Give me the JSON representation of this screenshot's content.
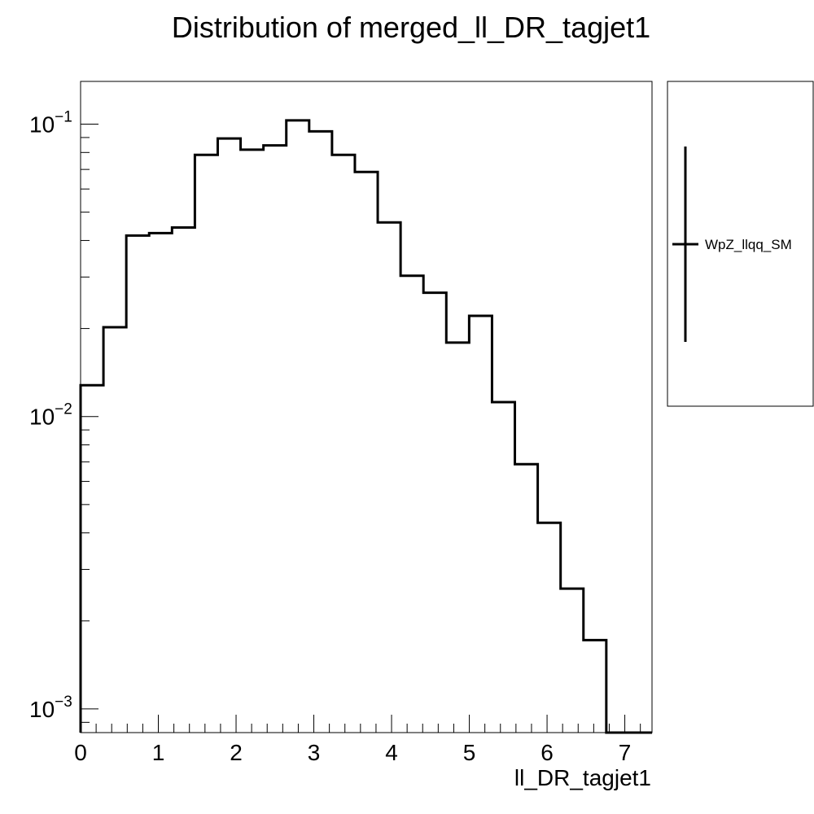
{
  "chart_data": {
    "type": "step-histogram",
    "title": "Distribution of merged_ll_DR_tagjet1",
    "xlabel": "ll_DR_tagjet1",
    "ylabel": "",
    "xlim": [
      0,
      7.35
    ],
    "ylim": [
      0.00083,
      0.14
    ],
    "yscale": "log",
    "grid": false,
    "legend_position": "right",
    "x_ticks": [
      0,
      1,
      2,
      3,
      4,
      5,
      6,
      7
    ],
    "x_tick_labels": [
      "0",
      "1",
      "2",
      "3",
      "4",
      "5",
      "6",
      "7"
    ],
    "y_ticks": [
      {
        "value": 0.1,
        "base": "10",
        "exp": "−1"
      },
      {
        "value": 0.01,
        "base": "10",
        "exp": "−2"
      },
      {
        "value": 0.001,
        "base": "10",
        "exp": "−3"
      }
    ],
    "bin_edges": [
      0,
      0.294,
      0.588,
      0.882,
      1.176,
      1.47,
      1.764,
      2.058,
      2.352,
      2.646,
      2.94,
      3.234,
      3.528,
      3.822,
      4.116,
      4.41,
      4.704,
      4.998,
      5.292,
      5.586,
      5.88,
      6.174,
      6.468,
      6.762,
      7.056,
      7.35
    ],
    "series": [
      {
        "name": "WpZ_llqq_SM",
        "color": "#000000",
        "values": [
          0.0128,
          0.0202,
          0.0416,
          0.0424,
          0.0443,
          0.0785,
          0.0893,
          0.0818,
          0.0846,
          0.103,
          0.0945,
          0.0785,
          0.0686,
          0.0461,
          0.0303,
          0.0265,
          0.0179,
          0.0221,
          0.0112,
          0.00687,
          0.00433,
          0.00258,
          0.00172,
          0,
          0
        ]
      }
    ]
  }
}
